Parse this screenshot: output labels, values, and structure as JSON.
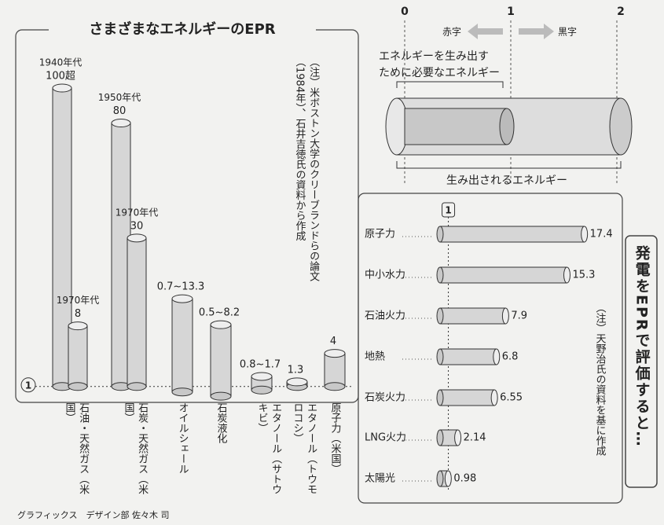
{
  "chart_data": [
    {
      "type": "cylinder-bar",
      "title": "さまざまなエネルギーのEPR",
      "note": "（注）米ボストン大学のクリーブランドらの論文（1984年）、石井吉徳氏の資料から作成",
      "categories": [
        "石油・天然ガス（米国）",
        "石炭・天然ガス（米国）",
        "オイルシェール",
        "石炭液化",
        "エタノール（サトウキビ）",
        "エタノール（トウモロコシ）",
        "原子力（米国）"
      ],
      "series": [
        {
          "periods": [
            "1940年代",
            "1950年代",
            null,
            null,
            null,
            null,
            null
          ],
          "lows": [
            null,
            null,
            0.7,
            0.5,
            0.8,
            null,
            null
          ],
          "values": [
            100,
            80,
            13.3,
            8.2,
            1.7,
            1.3,
            4
          ],
          "value_labels": [
            "100超",
            "80",
            "0.7~13.3",
            "0.5~8.2",
            "0.8~1.7",
            "1.3",
            "4"
          ]
        },
        {
          "periods": [
            "1970年代",
            "1970年代",
            null,
            null,
            null,
            null,
            null
          ],
          "values": [
            8,
            30,
            null,
            null,
            null,
            null,
            null
          ]
        }
      ],
      "ylim": [
        0,
        100
      ],
      "yticks": [
        1
      ]
    },
    {
      "type": "hcylinder-bar",
      "title": "発電をEPRで評価すると…",
      "note": "（注）天野治氏の資料を基に作成",
      "categories": [
        "原子力",
        "中小水力",
        "石油火力",
        "地熱",
        "石炭火力",
        "LNG火力",
        "太陽光"
      ],
      "values": [
        17.4,
        15.3,
        7.9,
        6.8,
        6.55,
        2.14,
        0.98
      ],
      "xlim": [
        0,
        18
      ],
      "xticks": [
        1
      ]
    }
  ],
  "explainer": {
    "scale_labels": [
      "0",
      "1",
      "2"
    ],
    "loss": "赤字",
    "gain": "黒字",
    "input_label": [
      "エネルギーを生み出す",
      "ために必要なエネルギー"
    ],
    "output_label": "生み出されるエネルギー"
  },
  "credit": "グラフィックス　デザイン部 佐々木 司"
}
